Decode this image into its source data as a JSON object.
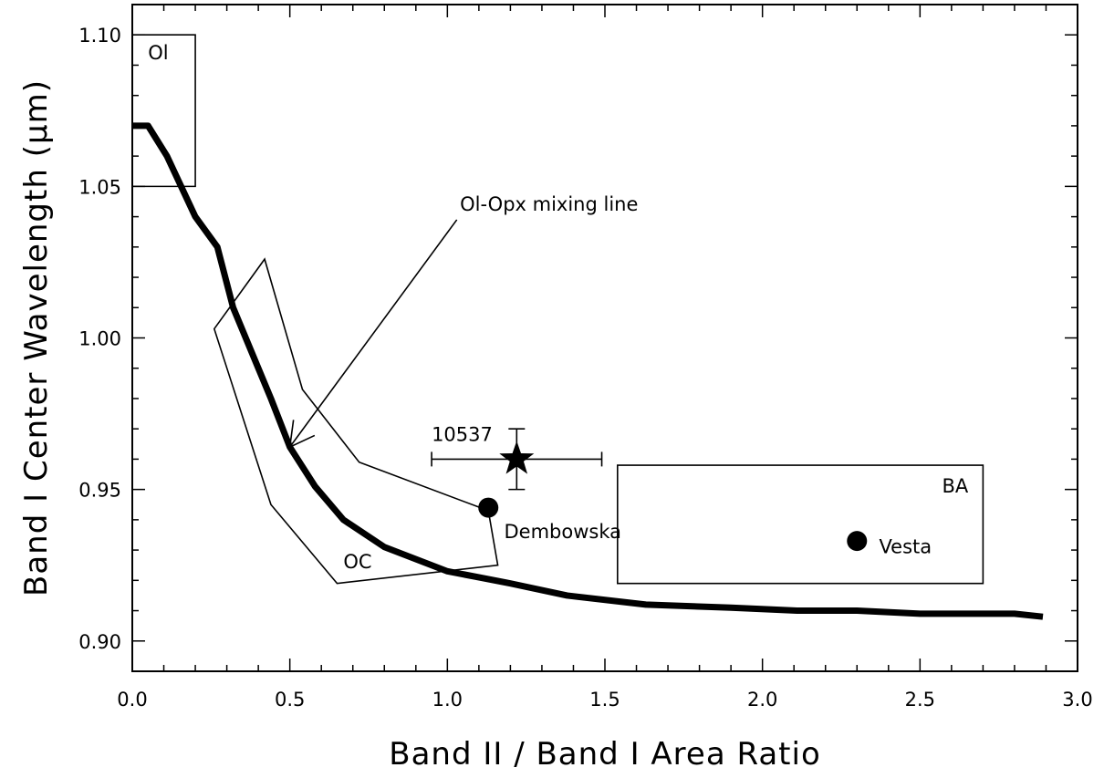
{
  "chart_data": {
    "type": "line",
    "title": "",
    "xlabel": "Band II / Band I Area Ratio",
    "ylabel": "Band I Center Wavelength (μm)",
    "xlim": [
      0.0,
      3.0
    ],
    "ylim": [
      0.89,
      1.11
    ],
    "x_ticks": [
      "0.0",
      "0.5",
      "1.0",
      "1.5",
      "2.0",
      "2.5",
      "3.0"
    ],
    "y_ticks": [
      "0.90",
      "0.95",
      "1.00",
      "1.05",
      "1.10"
    ],
    "x_tick_values": [
      0.0,
      0.5,
      1.0,
      1.5,
      2.0,
      2.5,
      3.0
    ],
    "y_tick_values": [
      0.9,
      0.95,
      1.0,
      1.05,
      1.1
    ],
    "x_minor_step": 0.1,
    "y_minor_step": 0.01,
    "grid": false,
    "series": [
      {
        "style": "thick-line",
        "x": [
          0.0,
          0.05,
          0.11,
          0.2,
          0.27,
          0.32,
          0.4,
          0.44,
          0.5,
          0.58,
          0.67,
          0.8,
          1.0,
          1.2,
          1.38,
          1.63,
          1.9,
          2.11,
          2.3,
          2.5,
          2.8,
          2.89
        ],
        "y": [
          1.07,
          1.07,
          1.06,
          1.04,
          1.03,
          1.01,
          0.99,
          0.98,
          0.964,
          0.951,
          0.94,
          0.931,
          0.923,
          0.919,
          0.915,
          0.912,
          0.911,
          0.91,
          0.91,
          0.909,
          0.909,
          0.908
        ]
      }
    ],
    "regions": [
      {
        "label": "Ol",
        "x": [
          0.0,
          0.2,
          0.2,
          0.0
        ],
        "y": [
          1.1,
          1.1,
          1.05,
          1.05
        ],
        "label_pos": [
          0.05,
          1.092
        ]
      },
      {
        "label": "OC",
        "x": [
          0.26,
          0.42,
          0.54,
          0.72,
          1.13,
          1.16,
          0.65,
          0.44
        ],
        "y": [
          1.003,
          1.026,
          0.983,
          0.959,
          0.943,
          0.925,
          0.919,
          0.945
        ],
        "label_pos": [
          0.67,
          0.924
        ]
      },
      {
        "label": "BA",
        "x": [
          1.54,
          2.7,
          2.7,
          1.54
        ],
        "y": [
          0.958,
          0.958,
          0.919,
          0.919
        ],
        "label_pos": [
          2.57,
          0.949
        ]
      }
    ],
    "points": [
      {
        "label": "Dembowska",
        "x": 1.13,
        "y": 0.944,
        "marker": "circle",
        "label_pos": [
          1.18,
          0.934
        ]
      },
      {
        "label": "Vesta",
        "x": 2.3,
        "y": 0.933,
        "marker": "circle",
        "label_pos": [
          2.37,
          0.929
        ]
      },
      {
        "label": "10537",
        "x": 1.22,
        "y": 0.96,
        "marker": "star",
        "xerr": [
          0.95,
          1.49
        ],
        "yerr": [
          0.95,
          0.97
        ],
        "label_pos": [
          0.95,
          0.966
        ]
      }
    ],
    "annotations": [
      {
        "text": "Ol-Opx mixing line",
        "x": 1.04,
        "y": 1.042,
        "arrow_from": [
          1.03,
          1.039
        ],
        "arrow_to": [
          0.5,
          0.964
        ]
      }
    ]
  }
}
